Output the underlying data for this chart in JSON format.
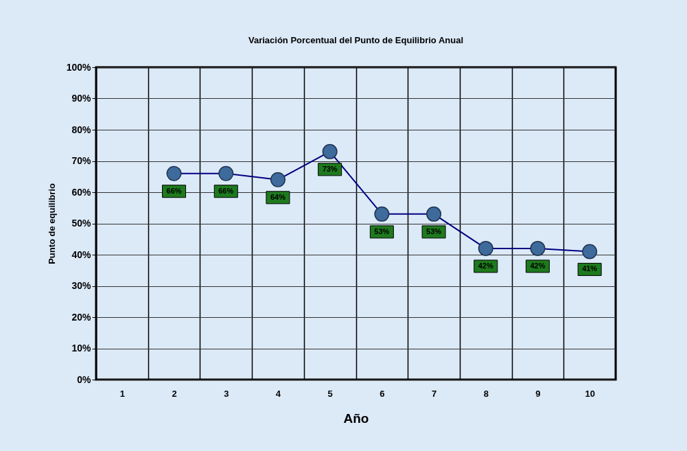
{
  "chart_data": {
    "type": "line",
    "title": "Variación Porcentual del Punto de Equilibrio Anual",
    "xlabel": "Año",
    "ylabel": "Punto de equilibrio",
    "categories": [
      "1",
      "2",
      "3",
      "4",
      "5",
      "6",
      "7",
      "8",
      "9",
      "10"
    ],
    "series": [
      {
        "color": "#000080",
        "values": [
          null,
          66,
          66,
          64,
          73,
          53,
          53,
          42,
          42,
          41
        ],
        "value_labels": [
          null,
          "66%",
          "66%",
          "64%",
          "73%",
          "53%",
          "53%",
          "42%",
          "42%",
          "41%"
        ]
      }
    ],
    "ylim": [
      0,
      100
    ],
    "yticks": [
      {
        "value": 0,
        "label": "0%"
      },
      {
        "value": 10,
        "label": "10%"
      },
      {
        "value": 20,
        "label": "20%"
      },
      {
        "value": 30,
        "label": "30%"
      },
      {
        "value": 40,
        "label": "40%"
      },
      {
        "value": 50,
        "label": "50%"
      },
      {
        "value": 60,
        "label": "60%"
      },
      {
        "value": 70,
        "label": "70%"
      },
      {
        "value": 80,
        "label": "80%"
      },
      {
        "value": 90,
        "label": "90%"
      },
      {
        "value": 100,
        "label": "100%"
      }
    ],
    "grid": true,
    "marker": "circle",
    "line_style": "solid"
  }
}
